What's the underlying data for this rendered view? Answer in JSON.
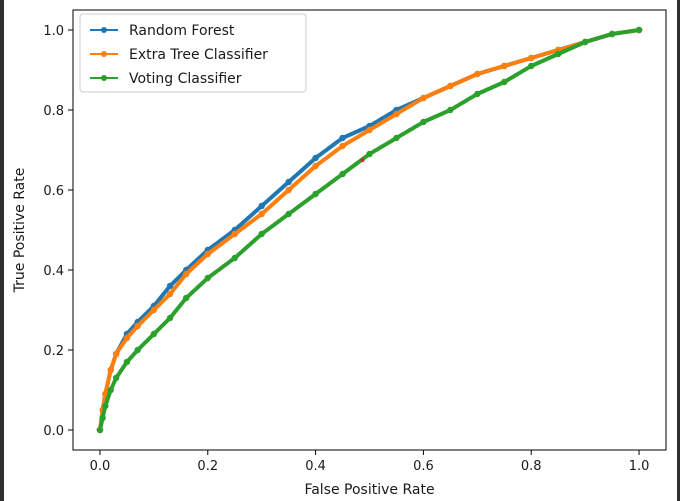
{
  "chart_data": {
    "type": "line",
    "title": "",
    "xlabel": "False Positive Rate",
    "ylabel": "True Positive Rate",
    "xlim": [
      -0.05,
      1.05
    ],
    "ylim": [
      -0.05,
      1.05
    ],
    "xticks": [
      0.0,
      0.2,
      0.4,
      0.6,
      0.8,
      1.0
    ],
    "yticks": [
      0.0,
      0.2,
      0.4,
      0.6,
      0.8,
      1.0
    ],
    "xtick_labels": [
      "0.0",
      "0.2",
      "0.4",
      "0.6",
      "0.8",
      "1.0"
    ],
    "ytick_labels": [
      "0.0",
      "0.2",
      "0.4",
      "0.6",
      "0.8",
      "1.0"
    ],
    "grid": false,
    "legend_position": "top-left",
    "marker": "dot",
    "series": [
      {
        "name": "Random Forest",
        "color": "#1f77b4",
        "x": [
          0.0,
          0.005,
          0.01,
          0.02,
          0.03,
          0.05,
          0.07,
          0.1,
          0.13,
          0.16,
          0.2,
          0.25,
          0.3,
          0.35,
          0.4,
          0.45,
          0.5,
          0.55,
          0.6,
          0.65,
          0.7,
          0.75,
          0.8,
          0.85,
          0.9,
          0.95,
          1.0
        ],
        "y": [
          0.0,
          0.05,
          0.09,
          0.15,
          0.19,
          0.24,
          0.27,
          0.31,
          0.36,
          0.4,
          0.45,
          0.5,
          0.56,
          0.62,
          0.68,
          0.73,
          0.76,
          0.8,
          0.83,
          0.86,
          0.89,
          0.91,
          0.93,
          0.95,
          0.97,
          0.99,
          1.0
        ]
      },
      {
        "name": "Extra Tree Classifier",
        "color": "#ff7f0e",
        "x": [
          0.0,
          0.005,
          0.01,
          0.02,
          0.03,
          0.05,
          0.07,
          0.1,
          0.13,
          0.16,
          0.2,
          0.25,
          0.3,
          0.35,
          0.4,
          0.45,
          0.5,
          0.55,
          0.6,
          0.65,
          0.7,
          0.75,
          0.8,
          0.85,
          0.9,
          0.95,
          1.0
        ],
        "y": [
          0.0,
          0.05,
          0.09,
          0.15,
          0.19,
          0.23,
          0.26,
          0.3,
          0.34,
          0.39,
          0.44,
          0.49,
          0.54,
          0.6,
          0.66,
          0.71,
          0.75,
          0.79,
          0.83,
          0.86,
          0.89,
          0.91,
          0.93,
          0.95,
          0.97,
          0.99,
          1.0
        ]
      },
      {
        "name": "Voting Classifier",
        "color": "#2ca02c",
        "x": [
          0.0,
          0.005,
          0.01,
          0.02,
          0.03,
          0.05,
          0.07,
          0.1,
          0.13,
          0.16,
          0.2,
          0.25,
          0.3,
          0.35,
          0.4,
          0.45,
          0.5,
          0.55,
          0.6,
          0.65,
          0.7,
          0.75,
          0.8,
          0.85,
          0.9,
          0.95,
          1.0
        ],
        "y": [
          0.0,
          0.03,
          0.06,
          0.1,
          0.13,
          0.17,
          0.2,
          0.24,
          0.28,
          0.33,
          0.38,
          0.43,
          0.49,
          0.54,
          0.59,
          0.64,
          0.69,
          0.73,
          0.77,
          0.8,
          0.84,
          0.87,
          0.91,
          0.94,
          0.97,
          0.99,
          1.0
        ]
      }
    ],
    "annotation_color": "#d62728"
  }
}
